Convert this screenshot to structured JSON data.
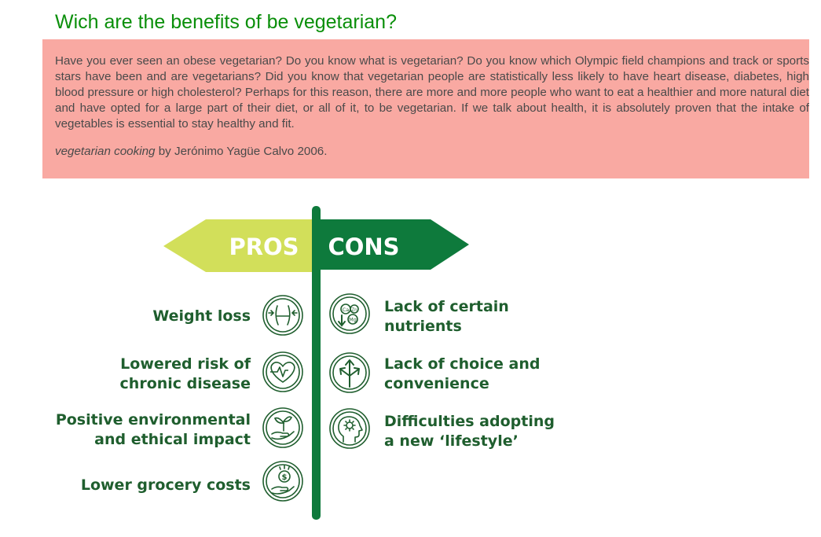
{
  "page": {
    "title": "Wich are the benefits of be vegetarian?"
  },
  "quote": {
    "text": "Have you ever seen an obese vegetarian? Do you know what is vegetarian? Do you know which Olympic field champions and track or sports stars have been and are vegetarians? Did you know that vegetarian people are statistically less likely to have heart disease, diabetes, high blood pressure or high cholesterol? Perhaps for this reason, there are more and more people who want to eat a healthier and more natural diet and have opted for a large part of their diet, or all of it, to be vegetarian. If we talk about health, it is absolutely proven that the intake of vegetables is essential to stay healthy and fit.",
    "book": "vegetarian cooking",
    "attribution": " by Jerónimo Yagüe Calvo 2006."
  },
  "infographic": {
    "pros_heading": "PROS",
    "cons_heading": "CONS",
    "pros": [
      {
        "line1": "Weight loss",
        "line2": "",
        "icon": "waist-measure-icon"
      },
      {
        "line1": "Lowered risk of",
        "line2": "chronic disease",
        "icon": "heartbeat-icon"
      },
      {
        "line1": "Positive environmental",
        "line2": "and ethical impact",
        "icon": "hand-sprout-icon"
      },
      {
        "line1": "Lower grocery costs",
        "line2": "",
        "icon": "hand-coin-icon"
      }
    ],
    "cons": [
      {
        "line1": "Lack of certain",
        "line2": "nutrients",
        "icon": "minerals-icon"
      },
      {
        "line1": "Lack of choice and",
        "line2": "convenience",
        "icon": "split-arrows-icon"
      },
      {
        "line1": "Difficulties adopting",
        "line2": "a new ‘lifestyle’",
        "icon": "head-gear-icon"
      }
    ],
    "icon_text": {
      "ca": "Ca",
      "zn": "Zn",
      "mg": "Mg",
      "dollar": "$"
    },
    "colors": {
      "pros_arrow": "#d2df5a",
      "cons_arrow": "#0e7a3c",
      "post": "#0e7a3c",
      "label": "#1f5e2e"
    }
  }
}
